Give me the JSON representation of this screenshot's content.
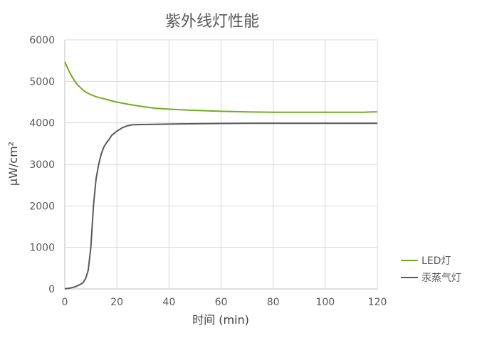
{
  "chart_data": {
    "type": "line",
    "title": "紫外线灯性能",
    "xlabel": "时间 (min)",
    "ylabel": "μW/cm²",
    "xlim": [
      0,
      120
    ],
    "ylim": [
      0,
      6000
    ],
    "x_ticks": [
      0,
      20,
      40,
      60,
      80,
      100,
      120
    ],
    "y_ticks": [
      0,
      1000,
      2000,
      3000,
      4000,
      5000,
      6000
    ],
    "grid": true,
    "legend_position": "bottom-right",
    "series": [
      {
        "name": "LED灯",
        "color": "#70ad20",
        "points": [
          [
            0,
            5470
          ],
          [
            1,
            5330
          ],
          [
            2,
            5200
          ],
          [
            3,
            5090
          ],
          [
            4,
            4990
          ],
          [
            5,
            4910
          ],
          [
            6,
            4850
          ],
          [
            7,
            4790
          ],
          [
            8,
            4740
          ],
          [
            10,
            4680
          ],
          [
            12,
            4630
          ],
          [
            15,
            4580
          ],
          [
            18,
            4530
          ],
          [
            20,
            4500
          ],
          [
            25,
            4440
          ],
          [
            30,
            4390
          ],
          [
            35,
            4350
          ],
          [
            40,
            4330
          ],
          [
            50,
            4300
          ],
          [
            60,
            4280
          ],
          [
            70,
            4265
          ],
          [
            80,
            4255
          ],
          [
            90,
            4255
          ],
          [
            100,
            4255
          ],
          [
            110,
            4255
          ],
          [
            115,
            4255
          ],
          [
            118,
            4265
          ],
          [
            120,
            4265
          ]
        ]
      },
      {
        "name": "汞蒸气灯",
        "color": "#595959",
        "points": [
          [
            0,
            0
          ],
          [
            2,
            20
          ],
          [
            4,
            50
          ],
          [
            5,
            80
          ],
          [
            6,
            110
          ],
          [
            7,
            150
          ],
          [
            8,
            250
          ],
          [
            9,
            450
          ],
          [
            10,
            1000
          ],
          [
            11,
            2000
          ],
          [
            12,
            2650
          ],
          [
            13,
            3000
          ],
          [
            14,
            3250
          ],
          [
            15,
            3420
          ],
          [
            16,
            3520
          ],
          [
            17,
            3600
          ],
          [
            18,
            3700
          ],
          [
            20,
            3800
          ],
          [
            22,
            3880
          ],
          [
            24,
            3930
          ],
          [
            26,
            3955
          ],
          [
            30,
            3960
          ],
          [
            40,
            3970
          ],
          [
            50,
            3980
          ],
          [
            60,
            3985
          ],
          [
            70,
            3990
          ],
          [
            80,
            3990
          ],
          [
            90,
            3990
          ],
          [
            100,
            3990
          ],
          [
            110,
            3990
          ],
          [
            120,
            3990
          ]
        ]
      }
    ]
  }
}
